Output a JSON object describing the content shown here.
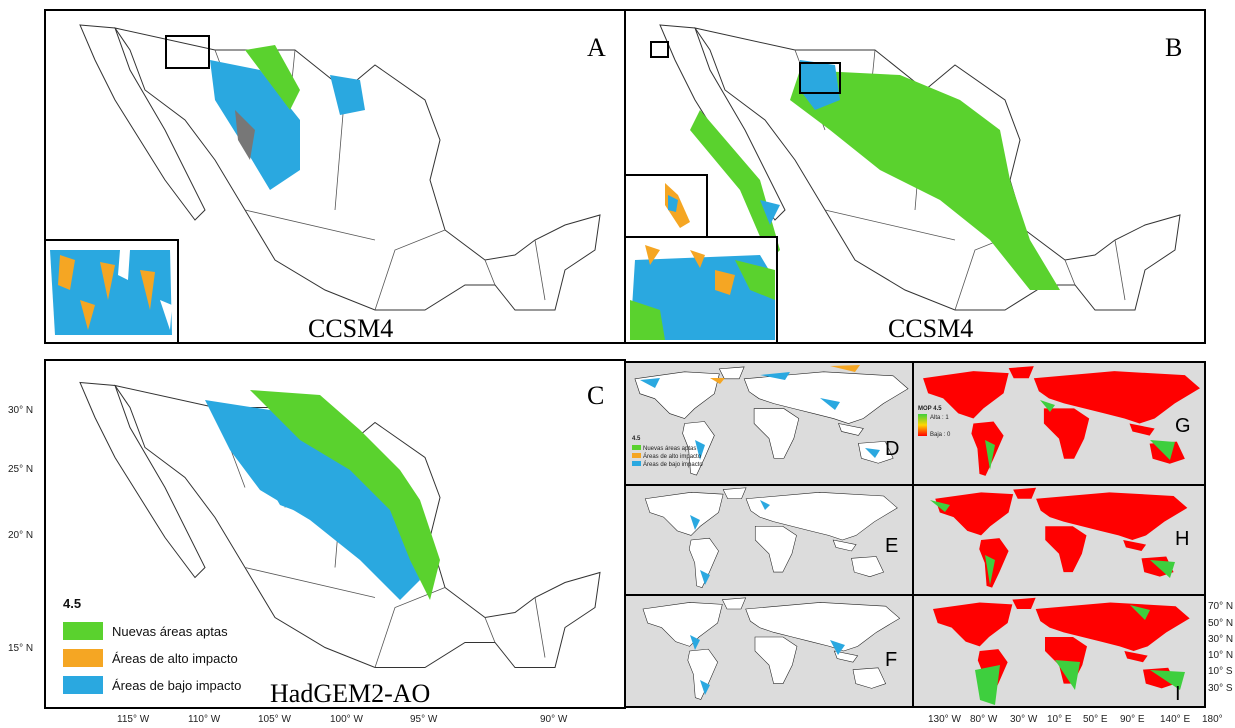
{
  "panels": {
    "A": {
      "letter": "A",
      "model": "CCSM4"
    },
    "B": {
      "letter": "B",
      "model": "CCSM4"
    },
    "C": {
      "letter": "C",
      "model": "HadGEM2-AO"
    },
    "D": {
      "letter": "D"
    },
    "E": {
      "letter": "E"
    },
    "F": {
      "letter": "F"
    },
    "G": {
      "letter": "G"
    },
    "H": {
      "letter": "H"
    },
    "I": {
      "letter": "I"
    }
  },
  "legend": {
    "title": "4.5",
    "items": [
      "Nuevas áreas aptas",
      "Áreas de alto impacto",
      "Áreas de bajo impacto"
    ]
  },
  "small_legend": {
    "title": "4.5",
    "items": [
      "Nuevas áreas aptas",
      "Áreas de alto impacto",
      "Áreas de bajo impacto"
    ]
  },
  "mop_legend": {
    "title": "MOP 4.5",
    "high": "Alta : 1",
    "low": "Baja : 0"
  },
  "mexico_lat_labels": [
    "30° N",
    "25° N",
    "20° N",
    "15° N"
  ],
  "mexico_lon_labels": [
    "115° W",
    "110° W",
    "105° W",
    "100° W",
    "95° W",
    "90° W"
  ],
  "world_lat_labels": [
    "70° N",
    "50° N",
    "30° N",
    "10° N",
    "10° S",
    "30° S"
  ],
  "world_lon_labels": [
    "130° W",
    "80° W",
    "30° W",
    "10° E",
    "50° E",
    "90° E",
    "140° E",
    "180°"
  ]
}
